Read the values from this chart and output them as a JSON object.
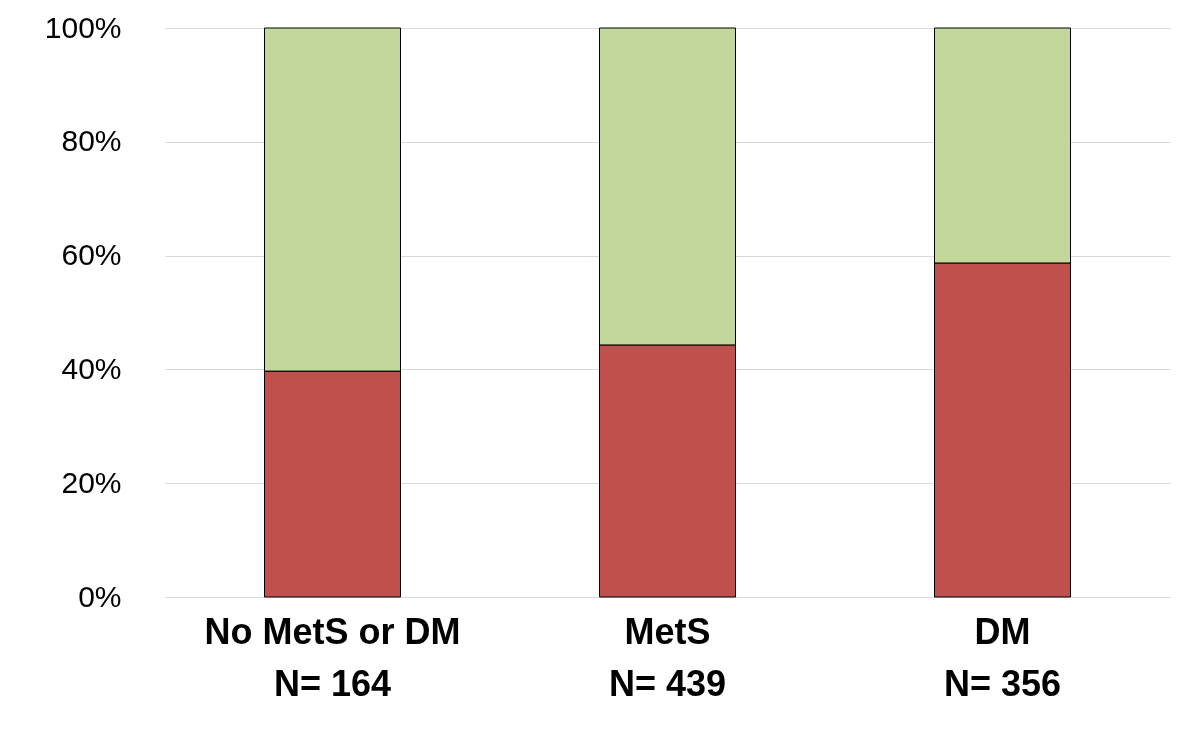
{
  "chart_data": {
    "type": "bar",
    "stacked": true,
    "categories": [
      "No MetS or DM\nN= 164",
      "MetS\nN= 439",
      "DM\nN= 356"
    ],
    "series": [
      {
        "color": "#c0504d",
        "values": [
          39.7,
          44.3,
          58.7
        ]
      },
      {
        "color": "#c3d69b",
        "values": [
          60.3,
          55.7,
          41.3
        ]
      }
    ],
    "ylim": [
      0,
      100
    ],
    "yticks": [
      {
        "value": 0,
        "label": "0%"
      },
      {
        "value": 20,
        "label": "20%"
      },
      {
        "value": 40,
        "label": "40%"
      },
      {
        "value": 60,
        "label": "60%"
      },
      {
        "value": 80,
        "label": "80%"
      },
      {
        "value": 100,
        "label": "100%"
      }
    ],
    "grid": "y",
    "legend": false
  }
}
